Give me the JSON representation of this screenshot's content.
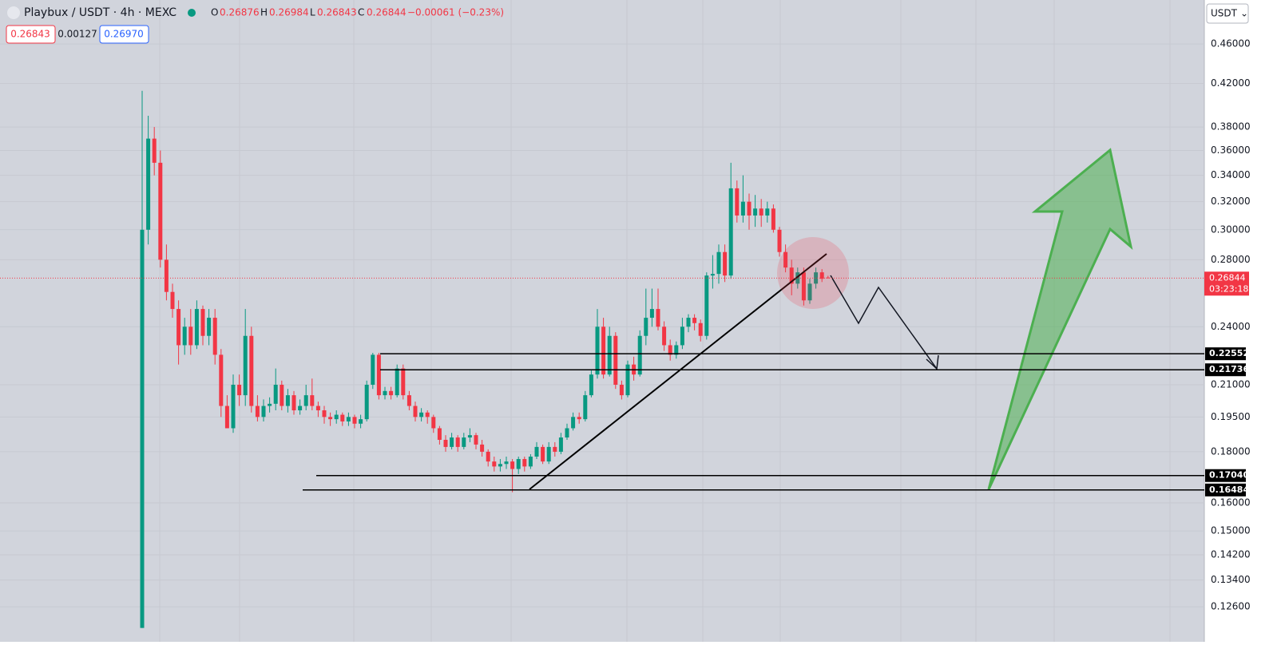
{
  "chart_data": {
    "type": "candlestick",
    "title": "Playbux / USDT · 4h · MEXC",
    "ohlc_labels": {
      "o": "O",
      "o_val": "0.26876",
      "h": "H",
      "h_val": "0.26984",
      "l": "L",
      "l_val": "0.26843",
      "c": "C",
      "c_val": "0.26844",
      "change": "−0.00061 (−0.23%)"
    },
    "bid": "0.26843",
    "spread": "0.00127",
    "ask": "0.26970",
    "currency": "USDT",
    "log_scale": true,
    "ylim": [
      0.1197,
      0.509
    ],
    "yticks": [
      {
        "value": 0.46,
        "label": "0.46000"
      },
      {
        "value": 0.42,
        "label": "0.42000"
      },
      {
        "value": 0.38,
        "label": "0.38000"
      },
      {
        "value": 0.36,
        "label": "0.36000"
      },
      {
        "value": 0.34,
        "label": "0.34000"
      },
      {
        "value": 0.32,
        "label": "0.32000"
      },
      {
        "value": 0.3,
        "label": "0.30000"
      },
      {
        "value": 0.28,
        "label": "0.28000"
      },
      {
        "value": 0.24,
        "label": "0.24000"
      },
      {
        "value": 0.21,
        "label": "0.21000"
      },
      {
        "value": 0.195,
        "label": "0.19500"
      },
      {
        "value": 0.18,
        "label": "0.18000"
      },
      {
        "value": 0.16,
        "label": "0.16000"
      },
      {
        "value": 0.15,
        "label": "0.15000"
      },
      {
        "value": 0.142,
        "label": "0.14200"
      },
      {
        "value": 0.134,
        "label": "0.13400"
      },
      {
        "value": 0.126,
        "label": "0.12600"
      }
    ],
    "up_color": "#089981",
    "down_color": "#f23645",
    "last_price": 0.26844,
    "countdown": "03:23:18",
    "levels": [
      0.22552,
      0.21736,
      {
        "value": 0.1704,
        "label": "0.17040"
      },
      0.16484
    ],
    "candles": [
      [
        0.12,
        0.413,
        0.12,
        0.3
      ],
      [
        0.3,
        0.39,
        0.29,
        0.37
      ],
      [
        0.37,
        0.38,
        0.34,
        0.35
      ],
      [
        0.35,
        0.36,
        0.275,
        0.28
      ],
      [
        0.28,
        0.29,
        0.255,
        0.26
      ],
      [
        0.26,
        0.265,
        0.245,
        0.25
      ],
      [
        0.25,
        0.255,
        0.22,
        0.23
      ],
      [
        0.23,
        0.245,
        0.225,
        0.24
      ],
      [
        0.24,
        0.25,
        0.225,
        0.23
      ],
      [
        0.23,
        0.255,
        0.228,
        0.25
      ],
      [
        0.25,
        0.252,
        0.23,
        0.235
      ],
      [
        0.235,
        0.25,
        0.23,
        0.245
      ],
      [
        0.245,
        0.25,
        0.22,
        0.225
      ],
      [
        0.225,
        0.228,
        0.195,
        0.2
      ],
      [
        0.2,
        0.205,
        0.19,
        0.19
      ],
      [
        0.19,
        0.215,
        0.188,
        0.21
      ],
      [
        0.21,
        0.215,
        0.2,
        0.205
      ],
      [
        0.205,
        0.25,
        0.2,
        0.235
      ],
      [
        0.235,
        0.24,
        0.197,
        0.2
      ],
      [
        0.2,
        0.205,
        0.193,
        0.195
      ],
      [
        0.195,
        0.203,
        0.193,
        0.2
      ],
      [
        0.2,
        0.204,
        0.197,
        0.201
      ],
      [
        0.201,
        0.218,
        0.198,
        0.21
      ],
      [
        0.21,
        0.212,
        0.198,
        0.2
      ],
      [
        0.2,
        0.208,
        0.197,
        0.205
      ],
      [
        0.205,
        0.207,
        0.196,
        0.198
      ],
      [
        0.198,
        0.203,
        0.196,
        0.2
      ],
      [
        0.2,
        0.21,
        0.198,
        0.205
      ],
      [
        0.205,
        0.213,
        0.198,
        0.2
      ],
      [
        0.2,
        0.202,
        0.195,
        0.198
      ],
      [
        0.198,
        0.2,
        0.192,
        0.195
      ],
      [
        0.195,
        0.197,
        0.191,
        0.194
      ],
      [
        0.194,
        0.198,
        0.192,
        0.196
      ],
      [
        0.196,
        0.197,
        0.191,
        0.193
      ],
      [
        0.193,
        0.197,
        0.191,
        0.195
      ],
      [
        0.195,
        0.196,
        0.19,
        0.192
      ],
      [
        0.192,
        0.196,
        0.19,
        0.194
      ],
      [
        0.194,
        0.212,
        0.193,
        0.21
      ],
      [
        0.21,
        0.226,
        0.208,
        0.225
      ],
      [
        0.225,
        0.226,
        0.203,
        0.205
      ],
      [
        0.205,
        0.209,
        0.203,
        0.207
      ],
      [
        0.207,
        0.209,
        0.203,
        0.205
      ],
      [
        0.205,
        0.22,
        0.204,
        0.218
      ],
      [
        0.218,
        0.22,
        0.203,
        0.205
      ],
      [
        0.205,
        0.207,
        0.198,
        0.2
      ],
      [
        0.2,
        0.202,
        0.193,
        0.195
      ],
      [
        0.195,
        0.199,
        0.193,
        0.197
      ],
      [
        0.197,
        0.198,
        0.192,
        0.195
      ],
      [
        0.195,
        0.196,
        0.188,
        0.19
      ],
      [
        0.19,
        0.191,
        0.183,
        0.185
      ],
      [
        0.185,
        0.187,
        0.18,
        0.182
      ],
      [
        0.182,
        0.188,
        0.181,
        0.186
      ],
      [
        0.186,
        0.187,
        0.18,
        0.182
      ],
      [
        0.182,
        0.188,
        0.181,
        0.186
      ],
      [
        0.186,
        0.19,
        0.184,
        0.187
      ],
      [
        0.187,
        0.188,
        0.181,
        0.183
      ],
      [
        0.183,
        0.185,
        0.178,
        0.18
      ],
      [
        0.18,
        0.181,
        0.174,
        0.176
      ],
      [
        0.176,
        0.178,
        0.172,
        0.174
      ],
      [
        0.174,
        0.177,
        0.172,
        0.175
      ],
      [
        0.175,
        0.178,
        0.173,
        0.176
      ],
      [
        0.176,
        0.177,
        0.164,
        0.173
      ],
      [
        0.173,
        0.178,
        0.171,
        0.177
      ],
      [
        0.177,
        0.178,
        0.172,
        0.174
      ],
      [
        0.174,
        0.179,
        0.173,
        0.178
      ],
      [
        0.178,
        0.184,
        0.177,
        0.182
      ],
      [
        0.182,
        0.183,
        0.175,
        0.176
      ],
      [
        0.176,
        0.184,
        0.175,
        0.182
      ],
      [
        0.182,
        0.184,
        0.178,
        0.18
      ],
      [
        0.18,
        0.188,
        0.179,
        0.186
      ],
      [
        0.186,
        0.192,
        0.185,
        0.19
      ],
      [
        0.19,
        0.197,
        0.189,
        0.195
      ],
      [
        0.195,
        0.197,
        0.192,
        0.194
      ],
      [
        0.194,
        0.207,
        0.193,
        0.205
      ],
      [
        0.205,
        0.217,
        0.204,
        0.215
      ],
      [
        0.215,
        0.25,
        0.213,
        0.24
      ],
      [
        0.24,
        0.245,
        0.213,
        0.215
      ],
      [
        0.215,
        0.24,
        0.214,
        0.235
      ],
      [
        0.235,
        0.237,
        0.208,
        0.21
      ],
      [
        0.21,
        0.212,
        0.203,
        0.205
      ],
      [
        0.205,
        0.222,
        0.204,
        0.22
      ],
      [
        0.22,
        0.224,
        0.212,
        0.215
      ],
      [
        0.215,
        0.238,
        0.214,
        0.235
      ],
      [
        0.235,
        0.262,
        0.23,
        0.245
      ],
      [
        0.245,
        0.262,
        0.24,
        0.25
      ],
      [
        0.25,
        0.262,
        0.238,
        0.24
      ],
      [
        0.24,
        0.243,
        0.227,
        0.23
      ],
      [
        0.23,
        0.233,
        0.222,
        0.225
      ],
      [
        0.225,
        0.232,
        0.223,
        0.23
      ],
      [
        0.23,
        0.245,
        0.228,
        0.24
      ],
      [
        0.24,
        0.247,
        0.237,
        0.245
      ],
      [
        0.245,
        0.247,
        0.238,
        0.242
      ],
      [
        0.242,
        0.244,
        0.232,
        0.235
      ],
      [
        0.235,
        0.272,
        0.233,
        0.27
      ],
      [
        0.27,
        0.283,
        0.262,
        0.271
      ],
      [
        0.271,
        0.29,
        0.265,
        0.285
      ],
      [
        0.285,
        0.29,
        0.266,
        0.27
      ],
      [
        0.27,
        0.35,
        0.268,
        0.33
      ],
      [
        0.33,
        0.336,
        0.305,
        0.31
      ],
      [
        0.31,
        0.34,
        0.305,
        0.32
      ],
      [
        0.32,
        0.326,
        0.3,
        0.31
      ],
      [
        0.31,
        0.325,
        0.302,
        0.315
      ],
      [
        0.315,
        0.322,
        0.302,
        0.31
      ],
      [
        0.31,
        0.32,
        0.305,
        0.315
      ],
      [
        0.315,
        0.318,
        0.298,
        0.3
      ],
      [
        0.3,
        0.302,
        0.282,
        0.285
      ],
      [
        0.285,
        0.29,
        0.272,
        0.275
      ],
      [
        0.275,
        0.28,
        0.258,
        0.265
      ],
      [
        0.265,
        0.275,
        0.262,
        0.272
      ],
      [
        0.272,
        0.275,
        0.252,
        0.255
      ],
      [
        0.255,
        0.268,
        0.253,
        0.265
      ],
      [
        0.265,
        0.275,
        0.262,
        0.272
      ],
      [
        0.272,
        0.274,
        0.266,
        0.268
      ],
      [
        0.26876,
        0.26984,
        0.26843,
        0.26844
      ]
    ]
  }
}
